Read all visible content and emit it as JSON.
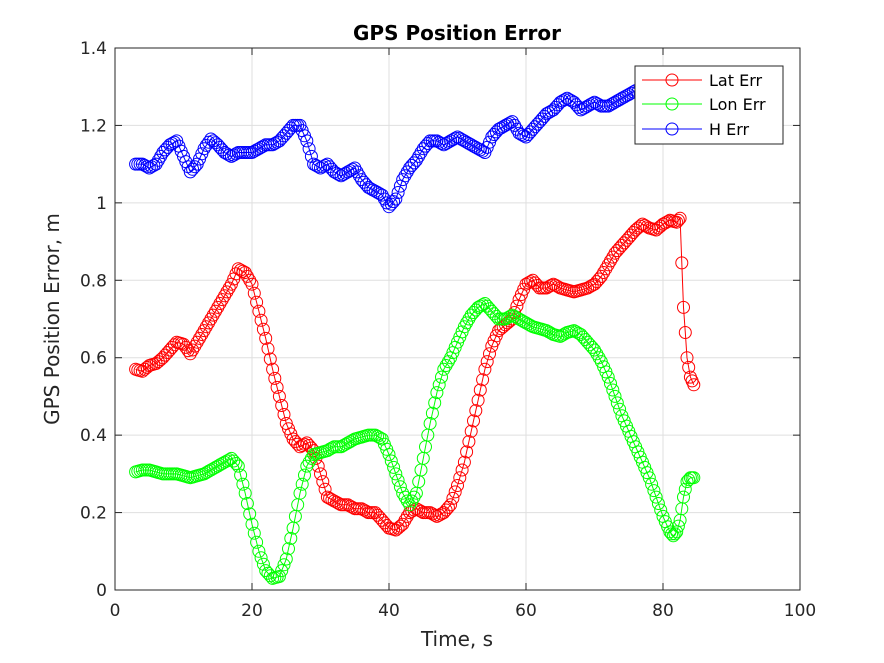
{
  "chart_data": {
    "type": "line",
    "title": "GPS Position Error",
    "xlabel": "Time, s",
    "ylabel": "GPS Position Error, m",
    "xlim": [
      0,
      100
    ],
    "ylim": [
      0,
      1.4
    ],
    "xticks": [
      0,
      20,
      40,
      60,
      80,
      100
    ],
    "yticks": [
      0,
      0.2,
      0.4,
      0.6,
      0.8,
      1,
      1.2,
      1.4
    ],
    "xtick_labels": [
      "0",
      "20",
      "40",
      "60",
      "80",
      "100"
    ],
    "ytick_labels": [
      "0",
      "0.2",
      "0.4",
      "0.6",
      "0.8",
      "1",
      "1.2",
      "1.4"
    ],
    "grid": true,
    "legend_position": "top-right",
    "marker": "circle",
    "series": [
      {
        "name": "Lat Err",
        "color": "#ff0000",
        "points": [
          [
            3,
            0.57
          ],
          [
            4,
            0.565
          ],
          [
            5,
            0.58
          ],
          [
            6,
            0.585
          ],
          [
            7,
            0.6
          ],
          [
            8,
            0.62
          ],
          [
            9,
            0.64
          ],
          [
            10,
            0.635
          ],
          [
            11,
            0.61
          ],
          [
            12,
            0.64
          ],
          [
            13,
            0.67
          ],
          [
            14,
            0.7
          ],
          [
            15,
            0.73
          ],
          [
            16,
            0.76
          ],
          [
            17,
            0.79
          ],
          [
            18,
            0.83
          ],
          [
            19,
            0.82
          ],
          [
            20,
            0.79
          ],
          [
            21,
            0.72
          ],
          [
            22,
            0.65
          ],
          [
            23,
            0.57
          ],
          [
            24,
            0.5
          ],
          [
            25,
            0.43
          ],
          [
            26,
            0.39
          ],
          [
            27,
            0.37
          ],
          [
            28,
            0.38
          ],
          [
            29,
            0.36
          ],
          [
            30,
            0.3
          ],
          [
            31,
            0.24
          ],
          [
            32,
            0.23
          ],
          [
            33,
            0.22
          ],
          [
            34,
            0.22
          ],
          [
            35,
            0.21
          ],
          [
            36,
            0.21
          ],
          [
            37,
            0.2
          ],
          [
            38,
            0.2
          ],
          [
            39,
            0.18
          ],
          [
            40,
            0.16
          ],
          [
            41,
            0.155
          ],
          [
            42,
            0.17
          ],
          [
            43,
            0.2
          ],
          [
            44,
            0.21
          ],
          [
            45,
            0.2
          ],
          [
            46,
            0.2
          ],
          [
            47,
            0.19
          ],
          [
            48,
            0.2
          ],
          [
            49,
            0.22
          ],
          [
            50,
            0.27
          ],
          [
            51,
            0.33
          ],
          [
            52,
            0.41
          ],
          [
            53,
            0.49
          ],
          [
            54,
            0.57
          ],
          [
            55,
            0.63
          ],
          [
            56,
            0.67
          ],
          [
            57,
            0.685
          ],
          [
            58,
            0.7
          ],
          [
            59,
            0.75
          ],
          [
            60,
            0.79
          ],
          [
            61,
            0.8
          ],
          [
            62,
            0.78
          ],
          [
            63,
            0.78
          ],
          [
            64,
            0.79
          ],
          [
            65,
            0.78
          ],
          [
            66,
            0.775
          ],
          [
            67,
            0.77
          ],
          [
            68,
            0.775
          ],
          [
            69,
            0.78
          ],
          [
            70,
            0.79
          ],
          [
            71,
            0.81
          ],
          [
            72,
            0.84
          ],
          [
            73,
            0.87
          ],
          [
            74,
            0.89
          ],
          [
            75,
            0.91
          ],
          [
            76,
            0.93
          ],
          [
            77,
            0.945
          ],
          [
            78,
            0.935
          ],
          [
            79,
            0.93
          ],
          [
            80,
            0.945
          ],
          [
            81,
            0.955
          ],
          [
            82,
            0.95
          ],
          [
            82.5,
            0.96
          ],
          [
            83,
            0.73
          ],
          [
            83.5,
            0.6
          ],
          [
            84,
            0.55
          ],
          [
            84.5,
            0.53
          ]
        ]
      },
      {
        "name": "Lon Err",
        "color": "#00ff00",
        "points": [
          [
            3,
            0.305
          ],
          [
            4,
            0.31
          ],
          [
            5,
            0.31
          ],
          [
            6,
            0.305
          ],
          [
            7,
            0.3
          ],
          [
            8,
            0.3
          ],
          [
            9,
            0.3
          ],
          [
            10,
            0.295
          ],
          [
            11,
            0.29
          ],
          [
            12,
            0.295
          ],
          [
            13,
            0.3
          ],
          [
            14,
            0.31
          ],
          [
            15,
            0.32
          ],
          [
            16,
            0.33
          ],
          [
            17,
            0.34
          ],
          [
            18,
            0.32
          ],
          [
            19,
            0.25
          ],
          [
            20,
            0.17
          ],
          [
            21,
            0.1
          ],
          [
            22,
            0.05
          ],
          [
            23,
            0.03
          ],
          [
            24,
            0.035
          ],
          [
            25,
            0.08
          ],
          [
            26,
            0.16
          ],
          [
            27,
            0.25
          ],
          [
            28,
            0.32
          ],
          [
            29,
            0.35
          ],
          [
            30,
            0.355
          ],
          [
            31,
            0.36
          ],
          [
            32,
            0.37
          ],
          [
            33,
            0.37
          ],
          [
            34,
            0.38
          ],
          [
            35,
            0.39
          ],
          [
            36,
            0.395
          ],
          [
            37,
            0.4
          ],
          [
            38,
            0.4
          ],
          [
            39,
            0.39
          ],
          [
            40,
            0.35
          ],
          [
            41,
            0.3
          ],
          [
            42,
            0.25
          ],
          [
            43,
            0.22
          ],
          [
            44,
            0.25
          ],
          [
            45,
            0.34
          ],
          [
            46,
            0.43
          ],
          [
            47,
            0.51
          ],
          [
            48,
            0.57
          ],
          [
            49,
            0.6
          ],
          [
            50,
            0.64
          ],
          [
            51,
            0.68
          ],
          [
            52,
            0.71
          ],
          [
            53,
            0.73
          ],
          [
            54,
            0.74
          ],
          [
            55,
            0.72
          ],
          [
            56,
            0.7
          ],
          [
            57,
            0.7
          ],
          [
            58,
            0.71
          ],
          [
            59,
            0.7
          ],
          [
            60,
            0.69
          ],
          [
            61,
            0.68
          ],
          [
            62,
            0.675
          ],
          [
            63,
            0.67
          ],
          [
            64,
            0.66
          ],
          [
            65,
            0.655
          ],
          [
            66,
            0.665
          ],
          [
            67,
            0.67
          ],
          [
            68,
            0.66
          ],
          [
            69,
            0.64
          ],
          [
            70,
            0.62
          ],
          [
            71,
            0.59
          ],
          [
            72,
            0.55
          ],
          [
            73,
            0.5
          ],
          [
            74,
            0.45
          ],
          [
            75,
            0.41
          ],
          [
            76,
            0.37
          ],
          [
            77,
            0.33
          ],
          [
            78,
            0.29
          ],
          [
            79,
            0.24
          ],
          [
            80,
            0.19
          ],
          [
            81,
            0.15
          ],
          [
            81.5,
            0.14
          ],
          [
            82,
            0.15
          ],
          [
            82.5,
            0.18
          ],
          [
            83,
            0.24
          ],
          [
            83.5,
            0.28
          ],
          [
            84,
            0.29
          ],
          [
            84.5,
            0.29
          ]
        ]
      },
      {
        "name": "H Err",
        "color": "#0000ff",
        "points": [
          [
            3,
            1.1
          ],
          [
            4,
            1.1
          ],
          [
            5,
            1.09
          ],
          [
            6,
            1.1
          ],
          [
            7,
            1.13
          ],
          [
            8,
            1.15
          ],
          [
            9,
            1.16
          ],
          [
            10,
            1.12
          ],
          [
            11,
            1.08
          ],
          [
            12,
            1.1
          ],
          [
            13,
            1.14
          ],
          [
            14,
            1.165
          ],
          [
            15,
            1.15
          ],
          [
            16,
            1.13
          ],
          [
            17,
            1.12
          ],
          [
            18,
            1.13
          ],
          [
            19,
            1.13
          ],
          [
            20,
            1.13
          ],
          [
            21,
            1.14
          ],
          [
            22,
            1.15
          ],
          [
            23,
            1.15
          ],
          [
            24,
            1.16
          ],
          [
            25,
            1.18
          ],
          [
            26,
            1.2
          ],
          [
            27,
            1.2
          ],
          [
            28,
            1.16
          ],
          [
            29,
            1.1
          ],
          [
            30,
            1.09
          ],
          [
            31,
            1.1
          ],
          [
            32,
            1.08
          ],
          [
            33,
            1.07
          ],
          [
            34,
            1.08
          ],
          [
            35,
            1.09
          ],
          [
            36,
            1.06
          ],
          [
            37,
            1.04
          ],
          [
            38,
            1.03
          ],
          [
            39,
            1.02
          ],
          [
            40,
            0.99
          ],
          [
            41,
            1.01
          ],
          [
            42,
            1.06
          ],
          [
            43,
            1.09
          ],
          [
            44,
            1.11
          ],
          [
            45,
            1.14
          ],
          [
            46,
            1.16
          ],
          [
            47,
            1.16
          ],
          [
            48,
            1.15
          ],
          [
            49,
            1.16
          ],
          [
            50,
            1.17
          ],
          [
            51,
            1.16
          ],
          [
            52,
            1.15
          ],
          [
            53,
            1.14
          ],
          [
            54,
            1.13
          ],
          [
            55,
            1.17
          ],
          [
            56,
            1.19
          ],
          [
            57,
            1.2
          ],
          [
            58,
            1.21
          ],
          [
            59,
            1.18
          ],
          [
            60,
            1.17
          ],
          [
            61,
            1.19
          ],
          [
            62,
            1.21
          ],
          [
            63,
            1.23
          ],
          [
            64,
            1.24
          ],
          [
            65,
            1.26
          ],
          [
            66,
            1.27
          ],
          [
            67,
            1.26
          ],
          [
            68,
            1.24
          ],
          [
            69,
            1.25
          ],
          [
            70,
            1.26
          ],
          [
            71,
            1.25
          ],
          [
            72,
            1.25
          ],
          [
            73,
            1.26
          ],
          [
            74,
            1.27
          ],
          [
            75,
            1.28
          ],
          [
            76,
            1.29
          ],
          [
            77,
            1.28
          ],
          [
            78,
            1.3
          ],
          [
            79,
            1.31
          ],
          [
            80,
            1.31
          ],
          [
            81,
            1.32
          ],
          [
            82,
            1.33
          ],
          [
            83,
            1.33
          ]
        ]
      }
    ]
  }
}
